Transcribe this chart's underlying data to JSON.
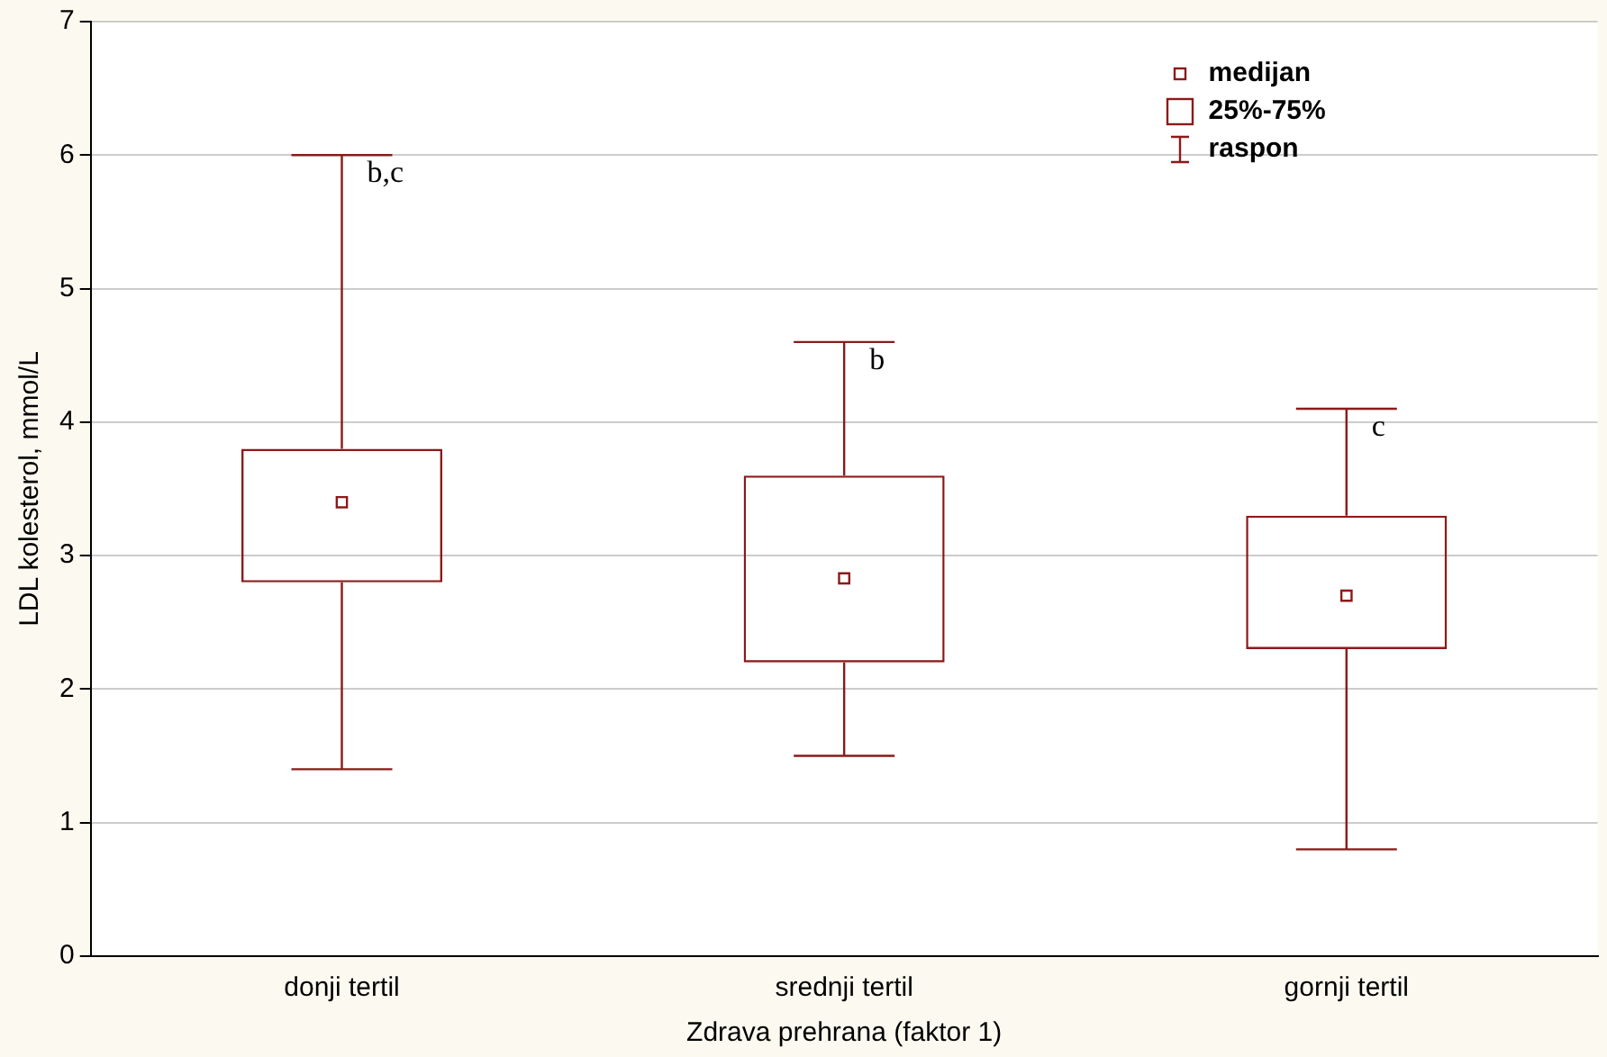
{
  "chart_data": {
    "type": "box",
    "xlabel": "Zdrava prehrana (faktor 1)",
    "ylabel": "LDL kolesterol, mmol/L",
    "categories": [
      "donji tertil",
      "srednji tertil",
      "gornji tertil"
    ],
    "color": "#8b1a1a",
    "boxes": [
      {
        "low": 1.4,
        "q1": 2.8,
        "median": 3.4,
        "q3": 3.8,
        "high": 6.0
      },
      {
        "low": 1.5,
        "q1": 2.2,
        "median": 2.83,
        "q3": 3.6,
        "high": 4.6
      },
      {
        "low": 0.8,
        "q1": 2.3,
        "median": 2.7,
        "q3": 3.3,
        "high": 4.1
      }
    ],
    "ylim": [
      0,
      7
    ],
    "yticks": [
      0,
      1,
      2,
      3,
      4,
      5,
      6,
      7
    ],
    "grid": "y",
    "annotations": [
      {
        "text": "b,c",
        "x": "donji tertil",
        "y": 6.0
      },
      {
        "text": "b",
        "x": "srednji tertil",
        "y": 4.6
      },
      {
        "text": "c",
        "x": "gornji tertil",
        "y": 4.1
      },
      "medijan",
      "25%-75%",
      "raspon"
    ]
  }
}
